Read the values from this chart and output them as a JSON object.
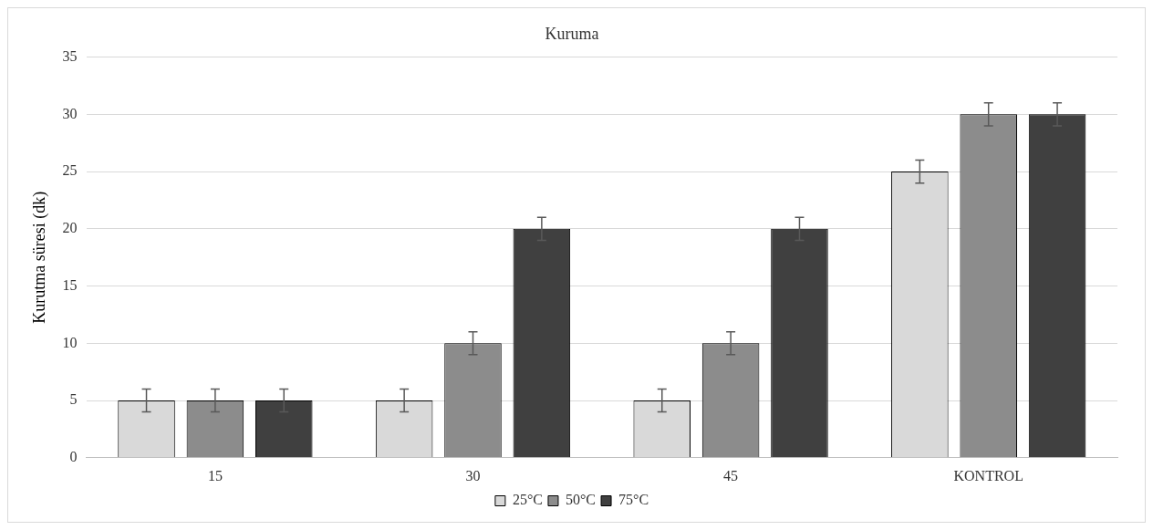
{
  "chart_data": {
    "type": "bar",
    "title": "Kuruma",
    "ylabel": "Kurutma süresi (dk)",
    "categories": [
      "15",
      "30",
      "45",
      "KONTROL"
    ],
    "series": [
      {
        "name": "25°C",
        "color": "#d9d9d9",
        "values": [
          5,
          5,
          5,
          25
        ],
        "errors": [
          1,
          1,
          1,
          1
        ]
      },
      {
        "name": "50°C",
        "color": "#8c8c8c",
        "values": [
          5,
          10,
          10,
          30
        ],
        "errors": [
          1,
          1,
          1,
          1
        ]
      },
      {
        "name": "75°C",
        "color": "#404040",
        "values": [
          5,
          20,
          20,
          30
        ],
        "errors": [
          1,
          1,
          1,
          1
        ]
      }
    ],
    "ylim": [
      0,
      35
    ],
    "yticks": [
      0,
      5,
      10,
      15,
      20,
      25,
      30,
      35
    ],
    "grid": "y",
    "legend": "bottom"
  }
}
